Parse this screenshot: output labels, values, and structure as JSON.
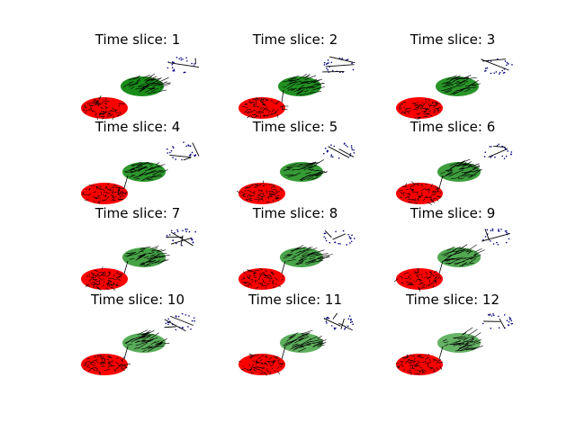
{
  "figure": {
    "background": "#ffffff",
    "panels": [
      {
        "title": "Time slice: 1"
      },
      {
        "title": "Time slice: 2"
      },
      {
        "title": "Time slice: 3"
      },
      {
        "title": "Time slice: 4"
      },
      {
        "title": "Time slice: 5"
      },
      {
        "title": "Time slice: 6"
      },
      {
        "title": "Time slice: 7"
      },
      {
        "title": "Time slice: 8"
      },
      {
        "title": "Time slice: 9"
      },
      {
        "title": "Time slice: 10"
      },
      {
        "title": "Time slice: 11"
      },
      {
        "title": "Time slice: 12"
      }
    ],
    "clusters": [
      {
        "name": "red-cluster",
        "color": "#ff0000",
        "edge_color": "#000000"
      },
      {
        "name": "green-cluster",
        "color": "#008000",
        "edge_color": "#000000"
      },
      {
        "name": "blue-cluster",
        "color": "#00007f",
        "edge_color": "#000000"
      }
    ]
  }
}
